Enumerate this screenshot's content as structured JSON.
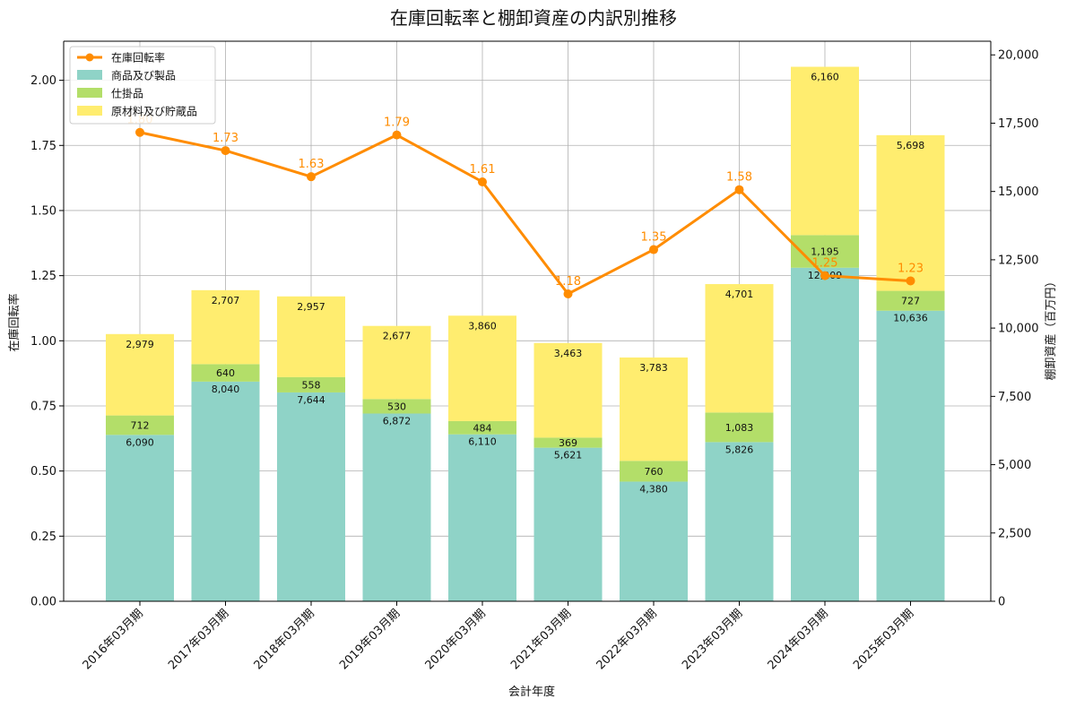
{
  "chart_data": {
    "type": "bar+line",
    "title": "在庫回転率と棚卸資産の内訳別推移",
    "xlabel": "会計年度",
    "ylabel_left": "在庫回転率",
    "ylabel_right": "棚卸資産（百万円）",
    "categories": [
      "2016年03月期",
      "2017年03月期",
      "2018年03月期",
      "2019年03月期",
      "2020年03月期",
      "2021年03月期",
      "2022年03月期",
      "2023年03月期",
      "2024年03月期",
      "2025年03月期"
    ],
    "ylim_left": [
      0,
      2.15
    ],
    "ylim_right": [
      0,
      20500
    ],
    "yticks_left": [
      "0.00",
      "0.25",
      "0.50",
      "0.75",
      "1.00",
      "1.25",
      "1.50",
      "1.75",
      "2.00"
    ],
    "yticks_right": [
      "0",
      "2,500",
      "5,000",
      "7,500",
      "10,000",
      "12,500",
      "15,000",
      "17,500",
      "20,000"
    ],
    "grid": true,
    "legend_position": "top-left",
    "series": [
      {
        "name": "商品及び製品",
        "kind": "bar",
        "color": "#8fd3c7",
        "values": [
          6090,
          8040,
          7644,
          6872,
          6110,
          5621,
          4380,
          5826,
          12209,
          10636
        ],
        "labels": [
          "6,090",
          "8,040",
          "7,644",
          "6,872",
          "6,110",
          "5,621",
          "4,380",
          "5,826",
          "12,209",
          "10,636"
        ]
      },
      {
        "name": "仕掛品",
        "kind": "bar",
        "color": "#b3de69",
        "values": [
          712,
          640,
          558,
          530,
          484,
          369,
          760,
          1083,
          1195,
          727
        ],
        "labels": [
          "712",
          "640",
          "558",
          "530",
          "484",
          "369",
          "760",
          "1,083",
          "1,195",
          "727"
        ]
      },
      {
        "name": "原材料及び貯蔵品",
        "kind": "bar",
        "color": "#ffed6f",
        "values": [
          2979,
          2707,
          2957,
          2677,
          3860,
          3463,
          3783,
          4701,
          6160,
          5698
        ],
        "labels": [
          "2,979",
          "2,707",
          "2,957",
          "2,677",
          "3,860",
          "3,463",
          "3,783",
          "4,701",
          "6,160",
          "5,698"
        ]
      },
      {
        "name": "在庫回転率",
        "kind": "line",
        "color": "#ff8c00",
        "values": [
          1.8,
          1.73,
          1.63,
          1.79,
          1.61,
          1.18,
          1.35,
          1.58,
          1.25,
          1.23
        ],
        "labels": [
          "1.80",
          "1.73",
          "1.63",
          "1.79",
          "1.61",
          "1.18",
          "1.35",
          "1.58",
          "1.25",
          "1.23"
        ]
      }
    ]
  }
}
